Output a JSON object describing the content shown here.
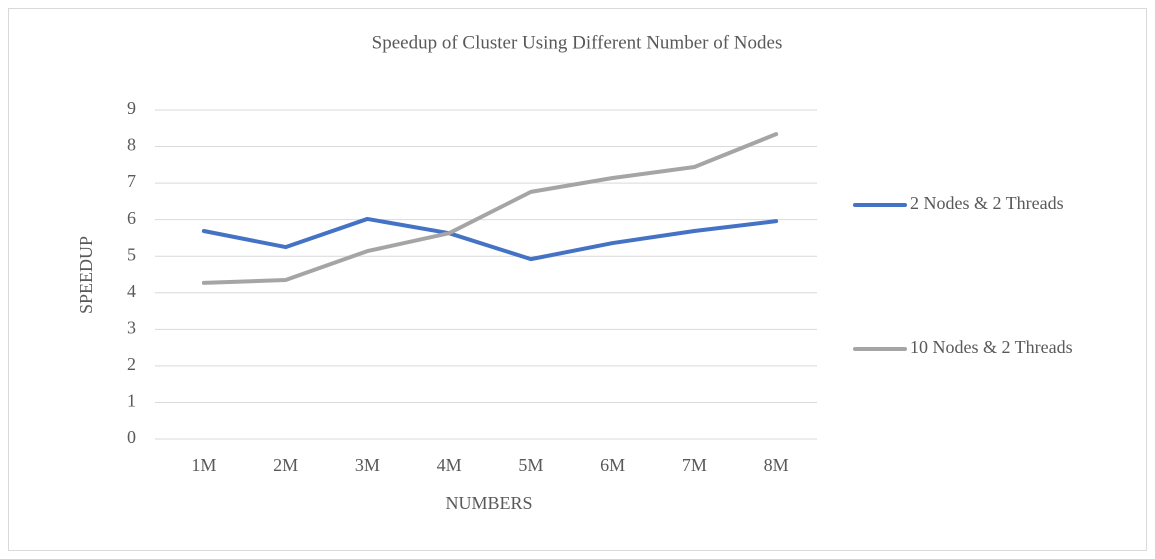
{
  "chart_data": {
    "type": "line",
    "title": "Speedup of Cluster Using Different Number of Nodes",
    "x_label": "NUMBERS",
    "y_label": "SPEEDUP",
    "categories": [
      "1M",
      "2M",
      "3M",
      "4M",
      "5M",
      "6M",
      "7M",
      "8M"
    ],
    "series": [
      {
        "name": "2 Nodes & 2 Threads",
        "color": "#4472c4",
        "values": [
          5.69,
          5.25,
          6.02,
          5.63,
          4.92,
          5.36,
          5.69,
          5.96
        ]
      },
      {
        "name": "10 Nodes & 2 Threads",
        "color": "#a5a5a5",
        "values": [
          4.27,
          4.35,
          5.14,
          5.63,
          6.76,
          7.14,
          7.44,
          8.34
        ]
      }
    ],
    "ylim": [
      0,
      9
    ],
    "yticks": [
      0,
      1,
      2,
      3,
      4,
      5,
      6,
      7,
      8,
      9
    ],
    "grid": true,
    "legend": "right"
  }
}
